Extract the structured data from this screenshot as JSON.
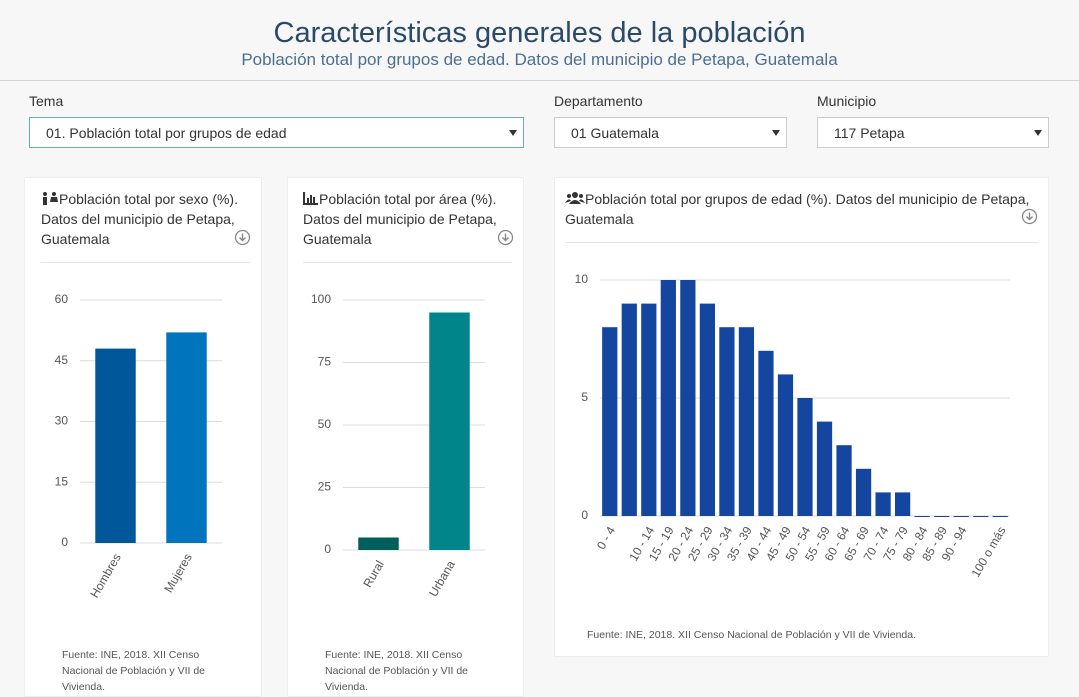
{
  "header": {
    "title": "Características generales de la población",
    "subtitle": "Población total por grupos de edad. Datos del municipio de Petapa, Guatemala"
  },
  "filters": [
    {
      "label": "Tema",
      "value": "01. Población total por grupos de edad"
    },
    {
      "label": "Departamento",
      "value": "01 Guatemala"
    },
    {
      "label": "Municipio",
      "value": "117 Petapa"
    }
  ],
  "chart_data": [
    {
      "type": "bar",
      "title": "Población total por sexo (%). Datos del municipio de Petapa, Guatemala",
      "categories": [
        "Hombres",
        "Mujeres"
      ],
      "values": [
        48,
        52
      ],
      "colors": [
        "#00589b",
        "#0075be"
      ],
      "ylim": [
        0,
        60
      ],
      "yticks": [
        0,
        15,
        30,
        45,
        60
      ],
      "grid": true,
      "source": "Fuente: INE, 2018. XII Censo Nacional de Población y VII de Vivienda."
    },
    {
      "type": "bar",
      "title": "Población total por área (%). Datos del municipio de Petapa, Guatemala",
      "categories": [
        "Rural",
        "Urbana"
      ],
      "values": [
        5,
        95
      ],
      "colors": [
        "#005e5b",
        "#00858a"
      ],
      "ylim": [
        0,
        100
      ],
      "yticks": [
        0,
        25,
        50,
        75,
        100
      ],
      "grid": true,
      "source": "Fuente: INE, 2018. XII Censo Nacional de Población y VII de Vivienda."
    },
    {
      "type": "bar",
      "title": "Población total por grupos de edad (%). Datos del municipio de Petapa, Guatemala",
      "categories": [
        "0 - 4",
        null,
        "10 - 14",
        "15 - 19",
        "20 - 24",
        "25 - 29",
        "30 - 34",
        "35 - 39",
        "40 - 44",
        "45 - 49",
        "50 - 54",
        "55 - 59",
        "60 - 64",
        "65 - 69",
        "70 - 74",
        "75 - 79",
        "80 - 84",
        "85 - 89",
        "90 - 94",
        null,
        "100 o más"
      ],
      "values": [
        8,
        9,
        9,
        10,
        10,
        9,
        8,
        8,
        7,
        6,
        5,
        4,
        3,
        2,
        1,
        1,
        0,
        0,
        0,
        0,
        0
      ],
      "colors": [
        "#1446a0"
      ],
      "ylim": [
        0,
        10
      ],
      "yticks": [
        0,
        5,
        10
      ],
      "grid": true,
      "source": "Fuente: INE, 2018. XII Censo Nacional de Población y VII de Vivienda."
    }
  ]
}
